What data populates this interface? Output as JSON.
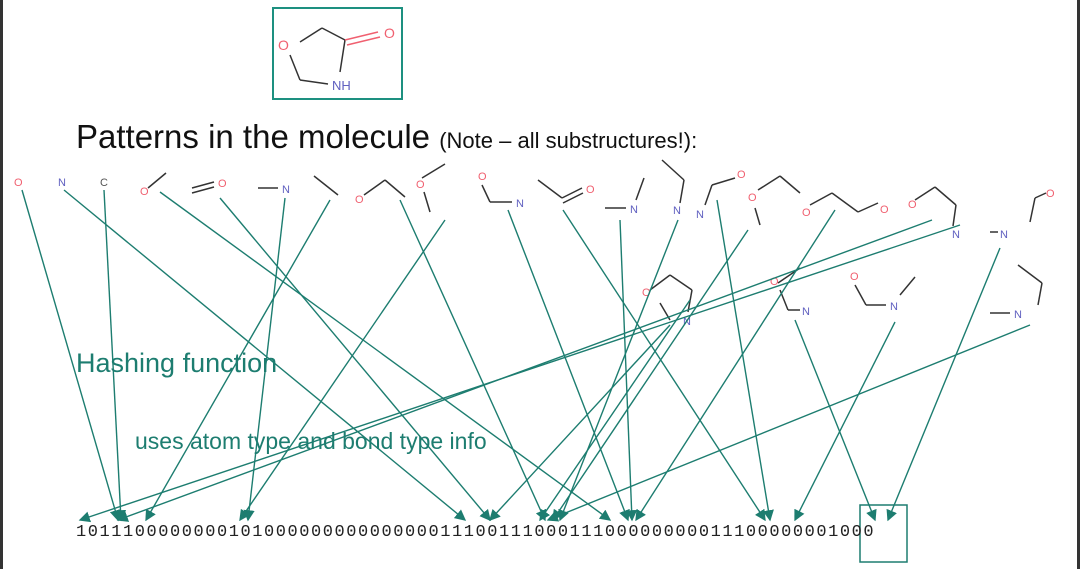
{
  "title": "Patterns in the molecule",
  "note": "(Note – all substructures!):",
  "hashing_label": "Hashing function",
  "hashing_detail": "uses atom type and bond type info",
  "bit_string": "10111000000001010000000000000001110011100011100000000011100000001000",
  "atoms": {
    "o": "O",
    "n": "N",
    "c": "C",
    "nh": "NH"
  },
  "colors": {
    "arrow": "#1d7d70",
    "oxygen": "#f06070",
    "nitrogen": "#6060c0",
    "bond": "#333333"
  }
}
